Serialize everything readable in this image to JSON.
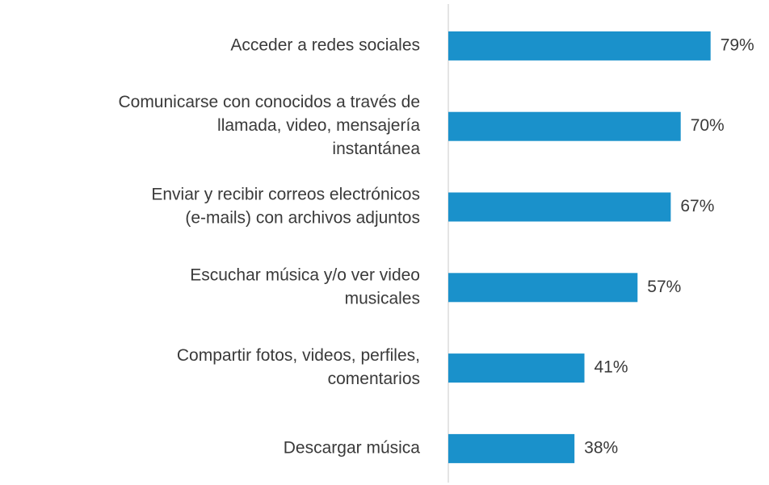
{
  "chart_data": {
    "type": "bar",
    "orientation": "horizontal",
    "categories": [
      [
        "Acceder a redes sociales"
      ],
      [
        "Comunicarse con conocidos a través de",
        "llamada, video,  mensajería",
        "instantánea"
      ],
      [
        "Enviar y recibir correos electrónicos",
        "(e-mails) con archivos adjuntos"
      ],
      [
        "Escuchar música y/o ver video",
        "musicales"
      ],
      [
        "Compartir fotos, videos, perfiles,",
        "comentarios"
      ],
      [
        "Descargar música"
      ]
    ],
    "values": [
      79,
      70,
      67,
      57,
      41,
      38
    ],
    "value_labels": [
      "79%",
      "70%",
      "67%",
      "57%",
      "41%",
      "38%"
    ],
    "color": "#1a91cb"
  }
}
